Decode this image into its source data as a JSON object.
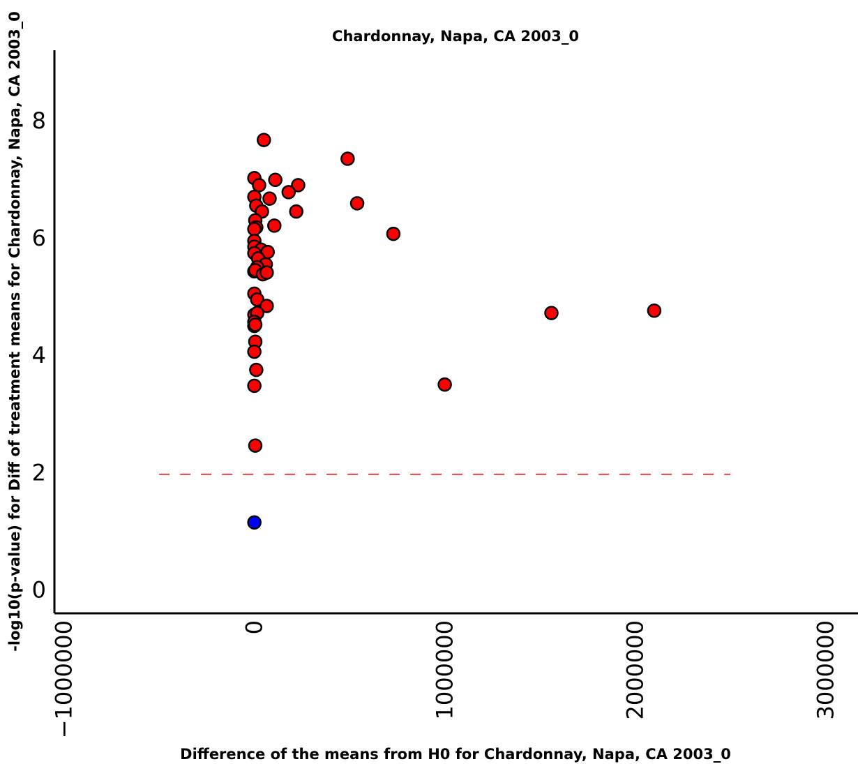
{
  "chart_data": {
    "type": "scatter",
    "title": "Chardonnay, Napa, CA 2003_0",
    "xlabel": "Difference of the means from H0 for Chardonnay, Napa, CA 2003_0",
    "ylabel": "-log10(p-value) for Diff of treatment means for Chardonnay, Napa, CA 2003_0",
    "xlim": [
      -1050000,
      3170000
    ],
    "ylim": [
      -0.4,
      9.2
    ],
    "xticks": [
      -1000000,
      0,
      1000000,
      2000000,
      3000000
    ],
    "xtick_labels": [
      "−1000000",
      "0",
      "1000000",
      "2000000",
      "3000000"
    ],
    "yticks": [
      0,
      2,
      4,
      6,
      8
    ],
    "ytick_labels": [
      "0",
      "2",
      "4",
      "6",
      "8"
    ],
    "threshold": {
      "y": 1.97,
      "x_start": -500000,
      "x_end": 2500000,
      "color": "#ff0000",
      "style": "dashed"
    },
    "grid": false,
    "series": [
      {
        "color": "#ff0000",
        "points": [
          [
            50000,
            7.67
          ],
          [
            490000,
            7.35
          ],
          [
            0,
            7.02
          ],
          [
            110000,
            6.99
          ],
          [
            25000,
            6.9
          ],
          [
            230000,
            6.9
          ],
          [
            180000,
            6.78
          ],
          [
            80000,
            6.67
          ],
          [
            0,
            6.7
          ],
          [
            540000,
            6.59
          ],
          [
            10000,
            6.55
          ],
          [
            40000,
            6.45
          ],
          [
            220000,
            6.45
          ],
          [
            5000,
            6.3
          ],
          [
            105000,
            6.21
          ],
          [
            10000,
            6.18
          ],
          [
            0,
            6.15
          ],
          [
            730000,
            6.07
          ],
          [
            0,
            5.95
          ],
          [
            0,
            5.85
          ],
          [
            35000,
            5.8
          ],
          [
            70000,
            5.76
          ],
          [
            0,
            5.74
          ],
          [
            20000,
            5.65
          ],
          [
            60000,
            5.55
          ],
          [
            15000,
            5.5
          ],
          [
            0,
            5.43
          ],
          [
            5000,
            5.45
          ],
          [
            45000,
            5.38
          ],
          [
            65000,
            5.41
          ],
          [
            0,
            5.05
          ],
          [
            15000,
            4.95
          ],
          [
            65000,
            4.84
          ],
          [
            1560000,
            4.72
          ],
          [
            2100000,
            4.76
          ],
          [
            0,
            4.69
          ],
          [
            15000,
            4.72
          ],
          [
            0,
            4.57
          ],
          [
            0,
            4.5
          ],
          [
            5000,
            4.52
          ],
          [
            5000,
            4.23
          ],
          [
            0,
            4.06
          ],
          [
            10000,
            3.75
          ],
          [
            0,
            3.48
          ],
          [
            1000000,
            3.5
          ],
          [
            5000,
            2.46
          ]
        ]
      },
      {
        "color": "#0000ff",
        "points": [
          [
            0,
            1.15
          ]
        ]
      }
    ]
  }
}
